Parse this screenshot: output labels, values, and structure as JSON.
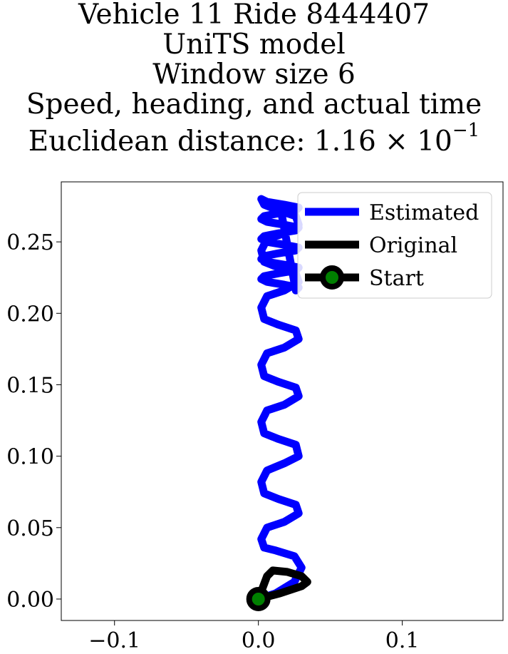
{
  "chart_data": {
    "type": "line",
    "title_lines": [
      "Vehicle 11 Ride 8444407",
      "UniTS model",
      "Window size 6",
      "Speed, heading, and actual time"
    ],
    "distance_label": "Euclidean distance: ",
    "distance_mantissa": "1.16",
    "distance_times": " × 10",
    "distance_exponent": "−1",
    "xlim": [
      -0.137,
      0.17
    ],
    "ylim": [
      -0.015,
      0.292
    ],
    "xticks": [
      {
        "value": -0.1,
        "label": "−0.1"
      },
      {
        "value": 0.0,
        "label": "0.0"
      },
      {
        "value": 0.1,
        "label": "0.1"
      }
    ],
    "yticks": [
      {
        "value": 0.0,
        "label": "0.00"
      },
      {
        "value": 0.05,
        "label": "0.05"
      },
      {
        "value": 0.1,
        "label": "0.10"
      },
      {
        "value": 0.15,
        "label": "0.15"
      },
      {
        "value": 0.2,
        "label": "0.20"
      },
      {
        "value": 0.25,
        "label": "0.25"
      }
    ],
    "legend_position": "top-right",
    "series": [
      {
        "name": "Estimated",
        "color": "#0000ff",
        "x": [
          0.0,
          0.012,
          0.025,
          0.03,
          0.025,
          0.012,
          0.004,
          0.002,
          0.006,
          0.018,
          0.028,
          0.026,
          0.014,
          0.004,
          0.002,
          0.006,
          0.018,
          0.028,
          0.026,
          0.014,
          0.004,
          0.002,
          0.006,
          0.018,
          0.028,
          0.026,
          0.014,
          0.004,
          0.002,
          0.006,
          0.018,
          0.028,
          0.026,
          0.014,
          0.004,
          0.002,
          0.006,
          0.018,
          0.028,
          0.026,
          0.014,
          0.004,
          0.002,
          0.006,
          0.018,
          0.028,
          0.026,
          0.014,
          0.004,
          0.002,
          0.006,
          0.018,
          0.028,
          0.026,
          0.014,
          0.004,
          0.002,
          0.006,
          0.018,
          0.028,
          0.026,
          0.014,
          0.004,
          0.002,
          0.006,
          0.018,
          0.028,
          0.026,
          0.014,
          0.004,
          0.002,
          0.006,
          0.018,
          0.028,
          0.026,
          0.014,
          0.004,
          0.002,
          0.006,
          0.018,
          0.028,
          0.026,
          0.016,
          0.006
        ],
        "y": [
          0.0,
          0.004,
          0.012,
          0.022,
          0.03,
          0.034,
          0.036,
          0.042,
          0.05,
          0.054,
          0.06,
          0.066,
          0.07,
          0.074,
          0.082,
          0.09,
          0.095,
          0.1,
          0.108,
          0.112,
          0.116,
          0.124,
          0.132,
          0.136,
          0.142,
          0.148,
          0.152,
          0.156,
          0.164,
          0.172,
          0.176,
          0.182,
          0.188,
          0.192,
          0.196,
          0.204,
          0.212,
          0.216,
          0.222,
          0.228,
          0.232,
          0.236,
          0.244,
          0.252,
          0.256,
          0.262,
          0.268,
          0.272,
          0.276,
          0.28,
          0.278,
          0.276,
          0.274,
          0.272,
          0.27,
          0.268,
          0.266,
          0.264,
          0.262,
          0.26,
          0.258,
          0.256,
          0.254,
          0.252,
          0.25,
          0.248,
          0.246,
          0.244,
          0.242,
          0.24,
          0.238,
          0.236,
          0.234,
          0.232,
          0.23,
          0.228,
          0.226,
          0.224,
          0.222,
          0.22,
          0.218,
          0.216,
          0.27,
          0.278
        ]
      },
      {
        "name": "Original",
        "color": "#000000",
        "x": [
          0.0,
          0.006,
          0.01,
          0.02,
          0.03,
          0.034,
          0.03,
          0.015,
          0.0
        ],
        "y": [
          0.0,
          0.016,
          0.02,
          0.019,
          0.016,
          0.012,
          0.009,
          0.004,
          0.0
        ]
      },
      {
        "name": "Start",
        "color": "#000000",
        "marker_fill": "#008000",
        "x": [
          0.0
        ],
        "y": [
          0.0
        ]
      }
    ]
  }
}
